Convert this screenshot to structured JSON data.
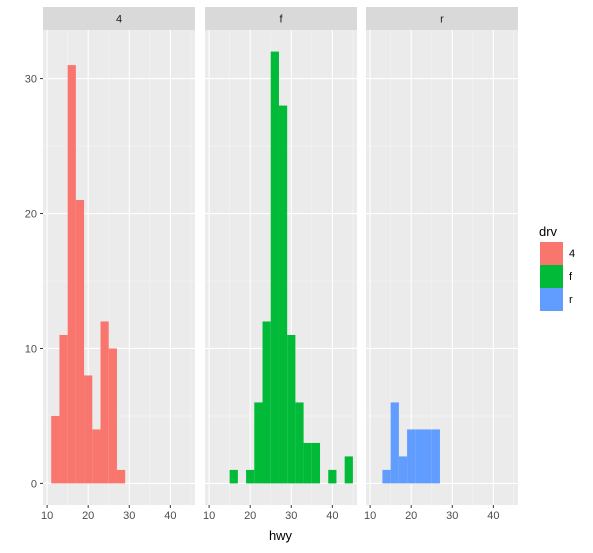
{
  "chart_data": {
    "type": "bar",
    "subtype": "faceted histogram",
    "title": "",
    "xlabel": "hwy",
    "ylabel": "",
    "xlim": [
      9,
      46
    ],
    "ylim": [
      -1.6,
      33.6
    ],
    "x_ticks": [
      10,
      20,
      30,
      40
    ],
    "y_ticks": [
      0,
      10,
      20,
      30
    ],
    "bin_width": 2,
    "grid": true,
    "legend": {
      "title": "drv",
      "position": "right",
      "entries": [
        {
          "label": "4",
          "color": "#F8766D"
        },
        {
          "label": "f",
          "color": "#00BA38"
        },
        {
          "label": "r",
          "color": "#619CFF"
        }
      ]
    },
    "facets": [
      {
        "strip": "4",
        "series": "4",
        "color": "#F8766D",
        "bins": [
          {
            "x0": 11,
            "x1": 13,
            "count": 5
          },
          {
            "x0": 13,
            "x1": 15,
            "count": 11
          },
          {
            "x0": 15,
            "x1": 17,
            "count": 31
          },
          {
            "x0": 17,
            "x1": 19,
            "count": 21
          },
          {
            "x0": 19,
            "x1": 21,
            "count": 8
          },
          {
            "x0": 21,
            "x1": 23,
            "count": 4
          },
          {
            "x0": 23,
            "x1": 25,
            "count": 12
          },
          {
            "x0": 25,
            "x1": 27,
            "count": 10
          },
          {
            "x0": 27,
            "x1": 29,
            "count": 1
          }
        ]
      },
      {
        "strip": "f",
        "series": "f",
        "color": "#00BA38",
        "bins": [
          {
            "x0": 15,
            "x1": 17,
            "count": 1
          },
          {
            "x0": 19,
            "x1": 21,
            "count": 1
          },
          {
            "x0": 21,
            "x1": 23,
            "count": 6
          },
          {
            "x0": 23,
            "x1": 25,
            "count": 12
          },
          {
            "x0": 25,
            "x1": 27,
            "count": 32
          },
          {
            "x0": 27,
            "x1": 29,
            "count": 28
          },
          {
            "x0": 29,
            "x1": 31,
            "count": 11
          },
          {
            "x0": 31,
            "x1": 33,
            "count": 6
          },
          {
            "x0": 33,
            "x1": 35,
            "count": 3
          },
          {
            "x0": 35,
            "x1": 37,
            "count": 3
          },
          {
            "x0": 39,
            "x1": 41,
            "count": 1
          },
          {
            "x0": 43,
            "x1": 45,
            "count": 2
          }
        ]
      },
      {
        "strip": "r",
        "series": "r",
        "color": "#619CFF",
        "bins": [
          {
            "x0": 13,
            "x1": 15,
            "count": 1
          },
          {
            "x0": 15,
            "x1": 17,
            "count": 6
          },
          {
            "x0": 17,
            "x1": 19,
            "count": 2
          },
          {
            "x0": 19,
            "x1": 21,
            "count": 4
          },
          {
            "x0": 21,
            "x1": 23,
            "count": 4
          },
          {
            "x0": 23,
            "x1": 25,
            "count": 4
          },
          {
            "x0": 25,
            "x1": 27,
            "count": 4
          }
        ]
      }
    ]
  },
  "colors": {
    "panel_background": "#EBEBEB",
    "strip_background": "#D9D9D9",
    "grid_major": "#FFFFFF",
    "grid_minor": "#F5F5F5"
  }
}
